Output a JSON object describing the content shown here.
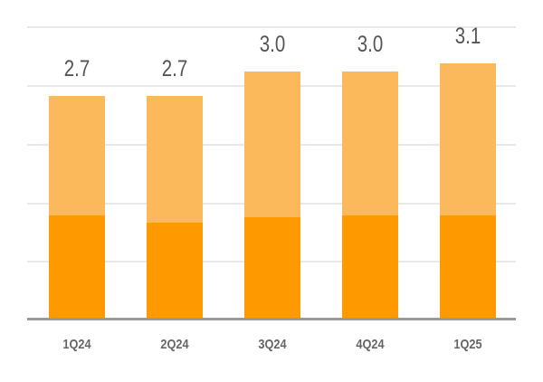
{
  "chart_data": {
    "type": "bar",
    "stacked": true,
    "title": "",
    "xlabel": "",
    "ylabel": "",
    "categories": [
      "1Q24",
      "2Q24",
      "3Q24",
      "4Q24",
      "1Q25"
    ],
    "totals": [
      2.7,
      2.7,
      3.0,
      3.0,
      3.1
    ],
    "total_labels": [
      "2.7",
      "2.7",
      "3.0",
      "3.0",
      "3.1"
    ],
    "series": [
      {
        "name": "lower segment",
        "color": "#ff9900",
        "values": [
          1.25,
          1.16,
          1.23,
          1.25,
          1.25
        ]
      },
      {
        "name": "upper segment",
        "color": "#fbb95c",
        "values": [
          1.45,
          1.54,
          1.77,
          1.75,
          1.85
        ]
      }
    ],
    "ylim": [
      0,
      3.5
    ],
    "grid": true,
    "y_tick_labels_visible": false,
    "legend": "none"
  },
  "colors": {
    "dark_orange": "#ff9900",
    "light_orange": "#fbb95c",
    "grid": "#e8e8e8",
    "axis": "#999999",
    "label_text": "#555555"
  }
}
